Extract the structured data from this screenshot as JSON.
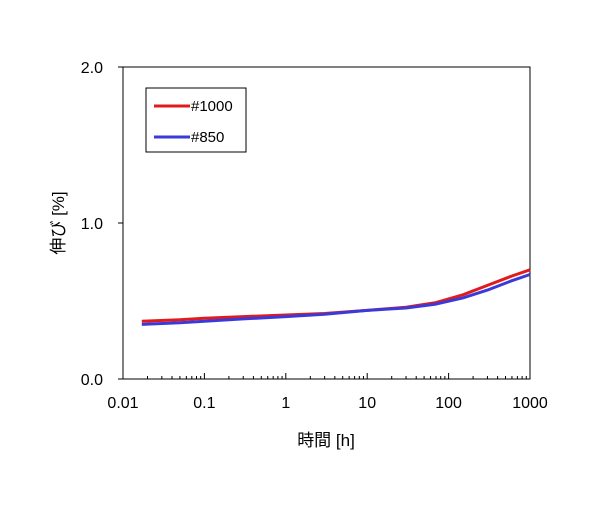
{
  "chart_data": {
    "type": "line",
    "title": "",
    "xlabel": "時間 [h]",
    "ylabel": "伸び [%]",
    "x_scale": "log",
    "xlim": [
      0.01,
      1000
    ],
    "ylim": [
      0.0,
      2.0
    ],
    "x_ticks": [
      {
        "value": 0.01,
        "label": "0.01"
      },
      {
        "value": 0.1,
        "label": "0.1"
      },
      {
        "value": 1,
        "label": "1"
      },
      {
        "value": 10,
        "label": "10"
      },
      {
        "value": 100,
        "label": "100"
      },
      {
        "value": 1000,
        "label": "1000"
      }
    ],
    "y_ticks": [
      {
        "value": 0.0,
        "label": "0.0"
      },
      {
        "value": 1.0,
        "label": "1.0"
      },
      {
        "value": 2.0,
        "label": "2.0"
      }
    ],
    "grid": false,
    "legend_position": "top-left",
    "series": [
      {
        "name": "#1000",
        "color": "#e11b1b",
        "points": [
          [
            0.017,
            0.37
          ],
          [
            0.05,
            0.38
          ],
          [
            0.1,
            0.39
          ],
          [
            0.3,
            0.4
          ],
          [
            1,
            0.41
          ],
          [
            3,
            0.42
          ],
          [
            10,
            0.44
          ],
          [
            30,
            0.46
          ],
          [
            70,
            0.49
          ],
          [
            150,
            0.54
          ],
          [
            300,
            0.6
          ],
          [
            600,
            0.66
          ],
          [
            1000,
            0.7
          ]
        ]
      },
      {
        "name": "#850",
        "color": "#3a3adb",
        "points": [
          [
            0.017,
            0.35
          ],
          [
            0.05,
            0.36
          ],
          [
            0.1,
            0.37
          ],
          [
            0.3,
            0.385
          ],
          [
            1,
            0.4
          ],
          [
            3,
            0.415
          ],
          [
            10,
            0.44
          ],
          [
            30,
            0.455
          ],
          [
            70,
            0.48
          ],
          [
            150,
            0.52
          ],
          [
            300,
            0.57
          ],
          [
            600,
            0.63
          ],
          [
            1000,
            0.67
          ]
        ]
      }
    ]
  }
}
